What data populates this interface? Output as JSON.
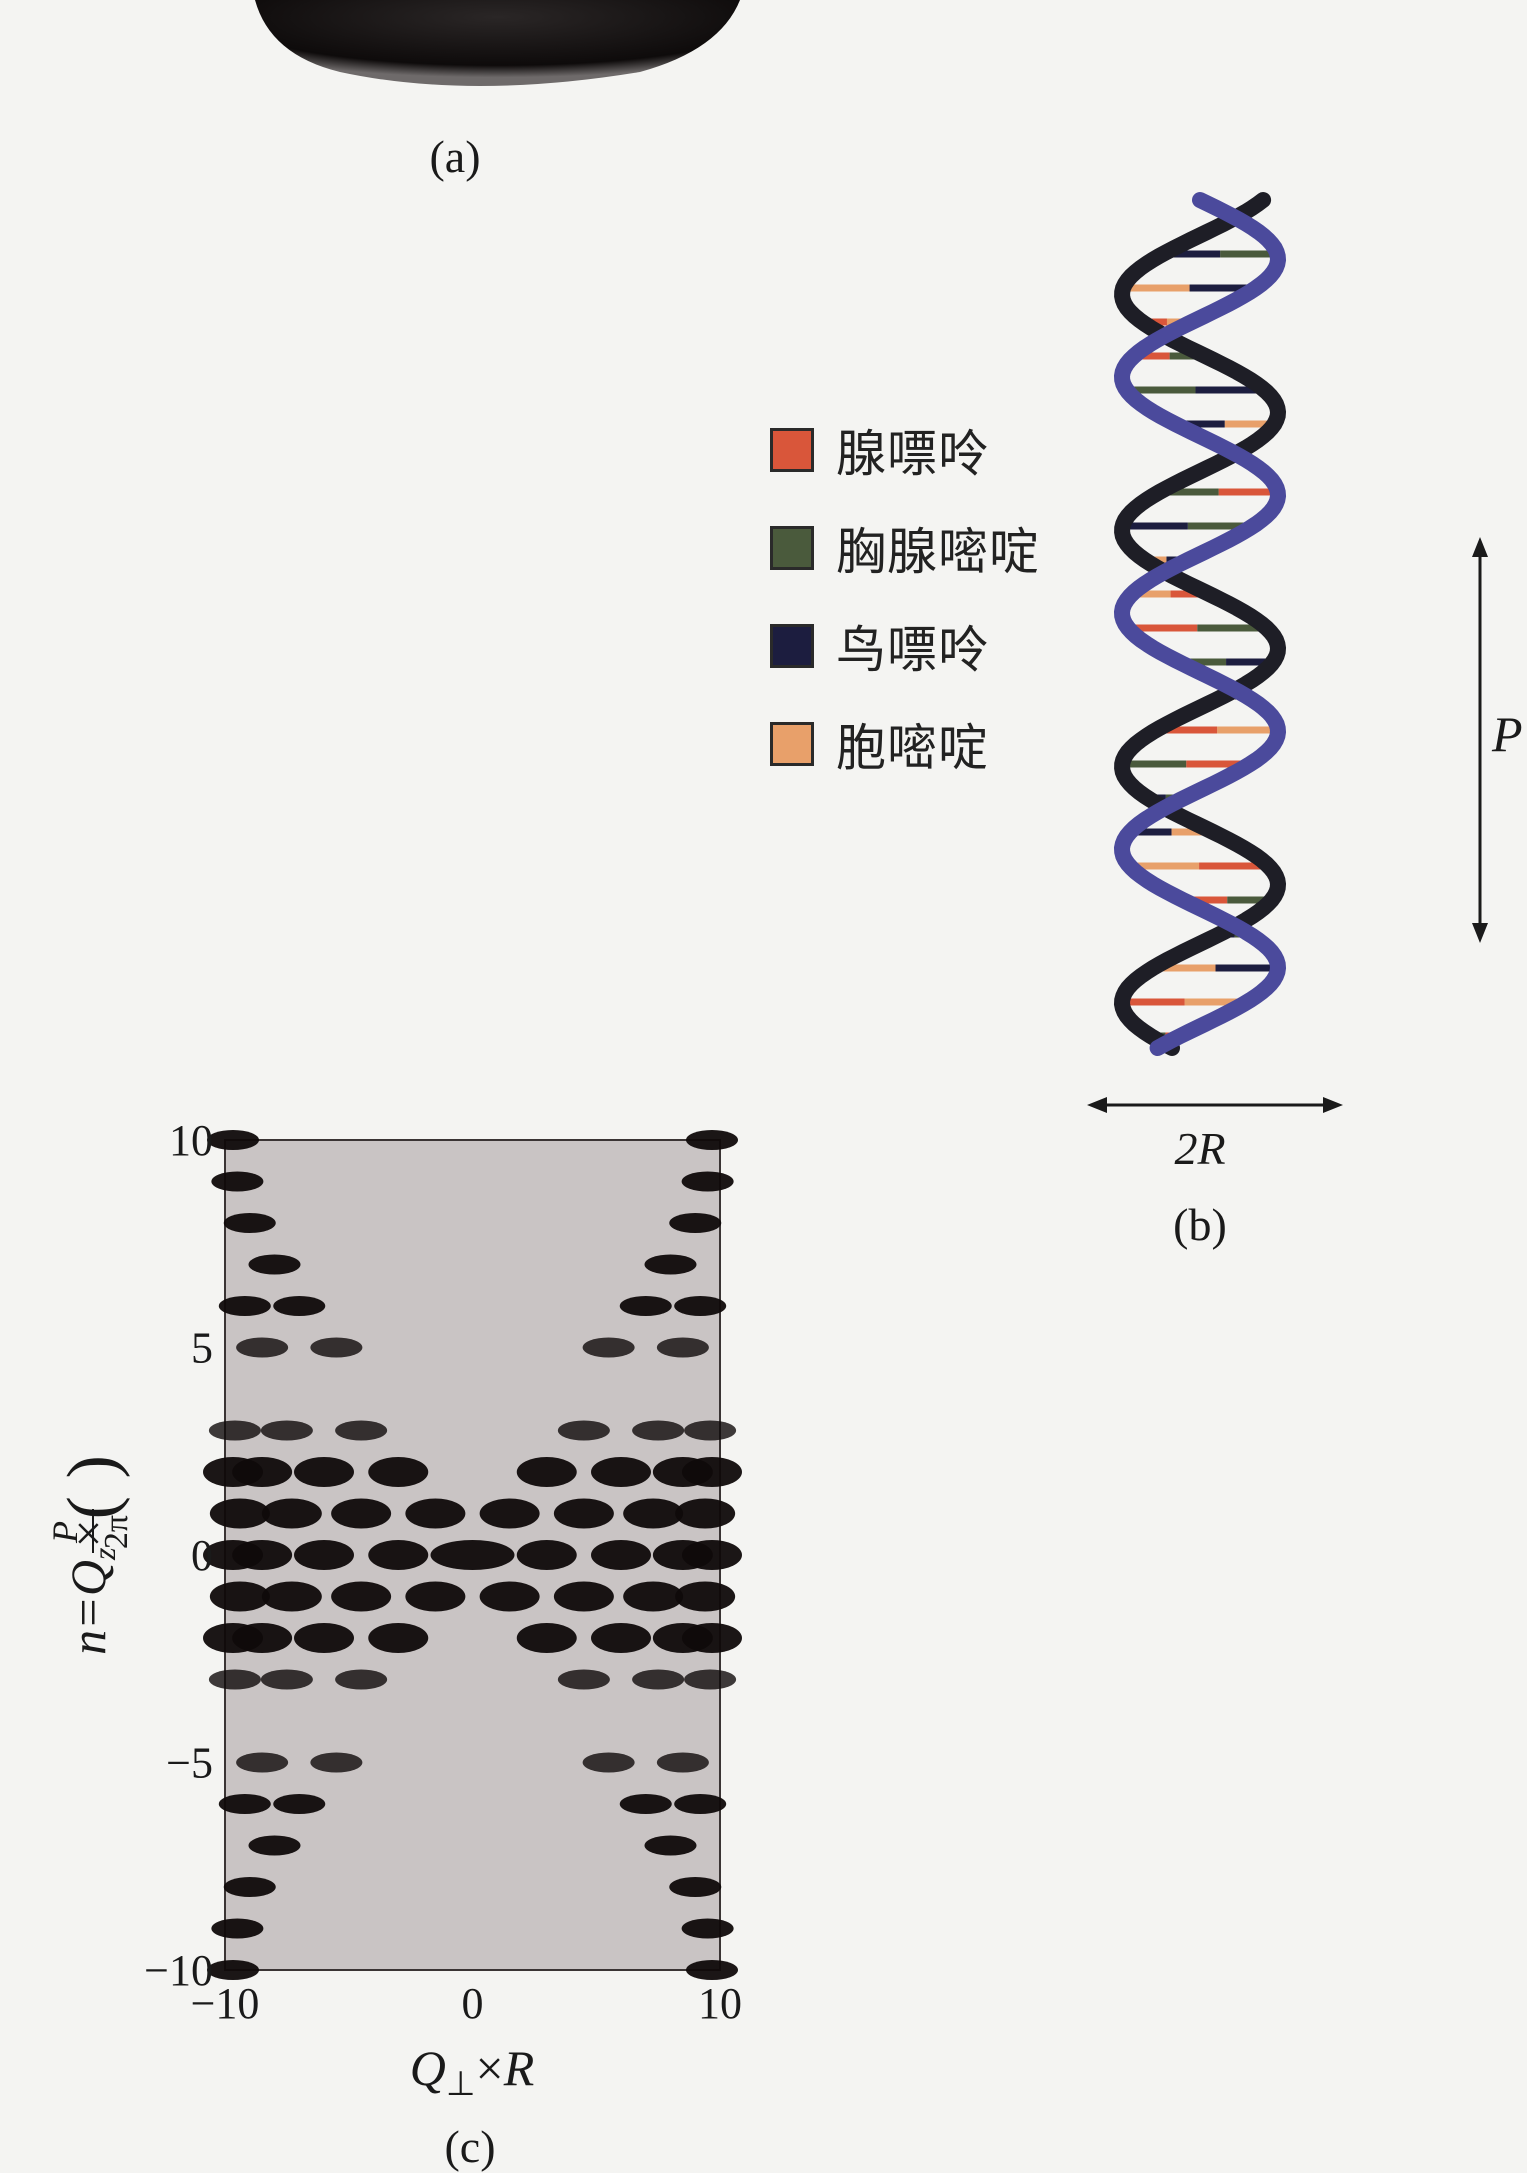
{
  "figure": {
    "panel_a": {
      "caption": "(a)"
    },
    "panel_b": {
      "caption": "(b)",
      "legend": [
        {
          "label": "腺嘌呤",
          "color": "#d9563a"
        },
        {
          "label": "胸腺嘧啶",
          "color": "#4a5a3c"
        },
        {
          "label": "鸟嘌呤",
          "color": "#1c1d3f"
        },
        {
          "label": "胞嘧啶",
          "color": "#e8a06a"
        }
      ],
      "width_label": "2R",
      "pitch_label": "P",
      "backbone_colors": {
        "strand_front": "#4b4a9c",
        "strand_back": "#1e1e26"
      }
    },
    "panel_c": {
      "caption": "(c)"
    }
  },
  "chart_data": {
    "type": "heatmap",
    "title": "",
    "xlabel": "Q⊥×R",
    "ylabel": "n=Qz×(P/2π)",
    "xlim": [
      -10,
      10
    ],
    "ylim": [
      -10,
      10
    ],
    "xticks": [
      "−10",
      "0",
      "10"
    ],
    "yticks": [
      "10",
      "5",
      "0",
      "−5",
      "−10"
    ],
    "ytick_values": [
      10,
      5,
      0,
      -5,
      -10
    ],
    "xtick_values": [
      -10,
      0,
      10
    ],
    "grid": false,
    "background_color": "#c9c4c4",
    "mark_color": "#0f0a0a",
    "spots": [
      {
        "n": 0,
        "q": [
          0,
          3,
          -3,
          6,
          -6,
          8.5,
          -8.5,
          10,
          -10
        ]
      },
      {
        "n": 1,
        "q": [
          1.5,
          -1.5,
          4.5,
          -4.5,
          7.3,
          -7.3,
          9.4,
          -9.4
        ]
      },
      {
        "n": -1,
        "q": [
          1.5,
          -1.5,
          4.5,
          -4.5,
          7.3,
          -7.3,
          9.4,
          -9.4
        ]
      },
      {
        "n": 2,
        "q": [
          3,
          -3,
          6,
          -6,
          8.5,
          -8.5,
          9.8,
          -9.8
        ]
      },
      {
        "n": -2,
        "q": [
          3,
          -3,
          6,
          -6,
          8.5,
          -8.5,
          9.8,
          -9.8
        ]
      },
      {
        "n": 3,
        "q": [
          4.5,
          -4.5,
          7.5,
          -7.5,
          9.6,
          -9.6
        ]
      },
      {
        "n": -3,
        "q": [
          4.5,
          -4.5,
          7.5,
          -7.5,
          9.6,
          -9.6
        ]
      },
      {
        "n": 5,
        "q": [
          5.5,
          -5.5,
          8.5,
          -8.5
        ]
      },
      {
        "n": -5,
        "q": [
          5.5,
          -5.5,
          8.5,
          -8.5
        ]
      },
      {
        "n": 6,
        "q": [
          7,
          -7,
          9.2,
          -9.2
        ]
      },
      {
        "n": -6,
        "q": [
          7,
          -7,
          9.2,
          -9.2
        ]
      },
      {
        "n": 7,
        "q": [
          8,
          -8
        ]
      },
      {
        "n": -7,
        "q": [
          8,
          -8
        ]
      },
      {
        "n": 8,
        "q": [
          9,
          -9
        ]
      },
      {
        "n": -8,
        "q": [
          9,
          -9
        ]
      },
      {
        "n": 9,
        "q": [
          9.5,
          -9.5
        ]
      },
      {
        "n": -9,
        "q": [
          9.5,
          -9.5
        ]
      },
      {
        "n": 10,
        "q": [
          9.9,
          -9.9
        ]
      },
      {
        "n": -10,
        "q": [
          9.9,
          -9.9
        ]
      }
    ]
  }
}
